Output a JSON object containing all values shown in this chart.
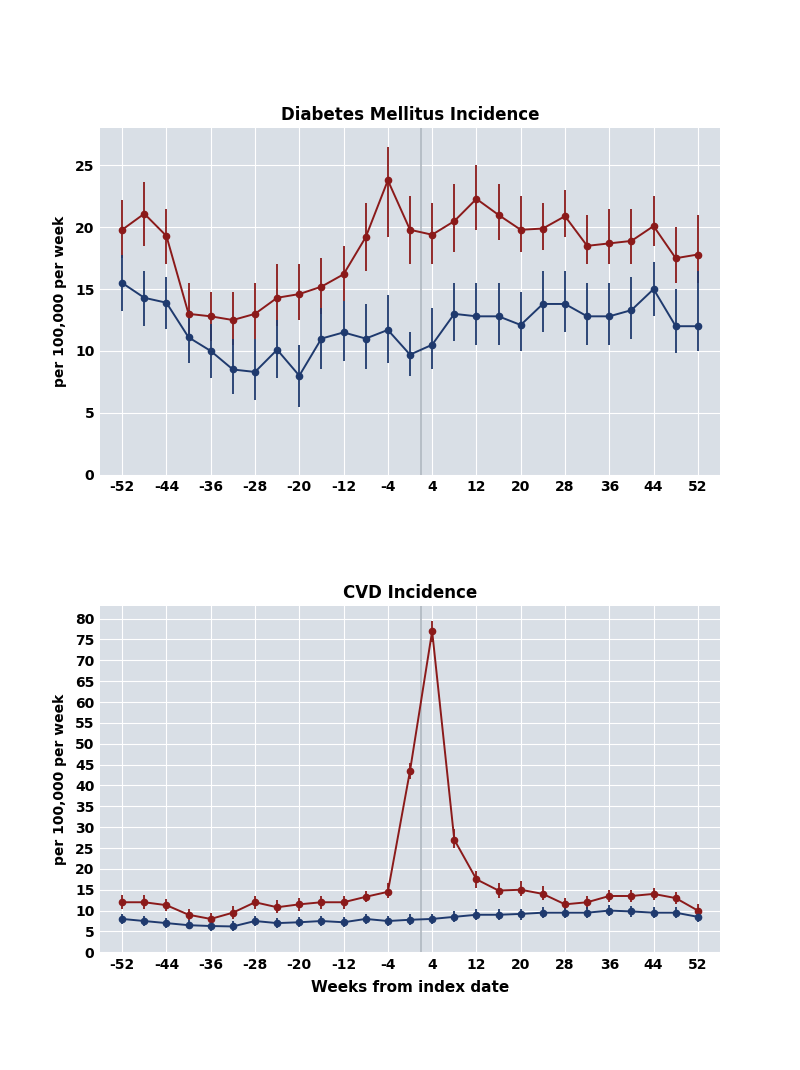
{
  "title1": "Diabetes Mellitus Incidence",
  "title2": "CVD Incidence",
  "xlabel": "Weeks from index date",
  "ylabel": "per 100,000 per week",
  "vline_x": 2,
  "bg_color": "#d9dfe6",
  "red_color": "#8B1A1A",
  "blue_color": "#1F3A6E",
  "grid_color": "#ffffff",
  "dm_weeks": [
    -52,
    -48,
    -44,
    -40,
    -36,
    -32,
    -28,
    -24,
    -20,
    -16,
    -12,
    -8,
    -4,
    0,
    4,
    8,
    12,
    16,
    20,
    24,
    28,
    32,
    36,
    40,
    44,
    48,
    52
  ],
  "dm_red_y": [
    19.8,
    21.1,
    19.3,
    13.0,
    12.8,
    12.5,
    13.0,
    14.3,
    14.6,
    15.2,
    16.2,
    19.2,
    23.8,
    19.8,
    19.4,
    20.5,
    22.3,
    21.0,
    19.8,
    19.9,
    20.9,
    18.5,
    18.7,
    18.9,
    20.1,
    17.5,
    17.8
  ],
  "dm_red_lo": [
    17.5,
    18.5,
    17.0,
    11.0,
    10.8,
    10.5,
    11.0,
    12.0,
    12.5,
    13.0,
    14.0,
    16.5,
    19.2,
    17.0,
    17.0,
    18.0,
    19.8,
    19.0,
    18.0,
    18.2,
    19.2,
    17.0,
    17.0,
    17.0,
    18.5,
    15.5,
    15.5
  ],
  "dm_red_hi": [
    22.2,
    23.7,
    21.5,
    15.5,
    14.8,
    14.8,
    15.5,
    17.0,
    17.0,
    17.5,
    18.5,
    22.0,
    26.5,
    22.5,
    22.0,
    23.5,
    25.0,
    23.5,
    22.5,
    22.0,
    23.0,
    21.0,
    21.5,
    21.5,
    22.5,
    20.0,
    21.0
  ],
  "dm_blue_y": [
    15.5,
    14.3,
    13.9,
    11.1,
    10.0,
    8.5,
    8.3,
    10.1,
    8.0,
    11.0,
    11.5,
    11.0,
    11.7,
    9.7,
    10.5,
    13.0,
    12.8,
    12.8,
    12.1,
    13.8,
    13.8,
    12.8,
    12.8,
    13.3,
    15.0,
    12.0,
    12.0
  ],
  "dm_blue_lo": [
    13.2,
    12.0,
    11.8,
    9.0,
    7.8,
    6.5,
    6.0,
    7.8,
    5.5,
    8.5,
    9.2,
    8.5,
    9.0,
    8.0,
    8.5,
    10.8,
    10.5,
    10.5,
    10.0,
    11.5,
    11.5,
    10.5,
    10.5,
    11.0,
    12.8,
    9.8,
    10.0
  ],
  "dm_blue_hi": [
    17.8,
    16.5,
    16.0,
    13.3,
    12.2,
    11.0,
    11.0,
    12.5,
    10.5,
    13.5,
    14.0,
    13.8,
    14.5,
    11.5,
    13.5,
    15.5,
    15.5,
    15.5,
    14.8,
    16.5,
    16.5,
    15.5,
    15.5,
    16.0,
    17.2,
    15.0,
    16.5
  ],
  "dm_ylim": [
    0,
    28
  ],
  "dm_yticks": [
    0,
    5,
    10,
    15,
    20,
    25
  ],
  "cvd_weeks": [
    -52,
    -48,
    -44,
    -40,
    -36,
    -32,
    -28,
    -24,
    -20,
    -16,
    -12,
    -8,
    -4,
    0,
    4,
    8,
    12,
    16,
    20,
    24,
    28,
    32,
    36,
    40,
    44,
    48,
    52
  ],
  "cvd_red_y": [
    12.0,
    12.0,
    11.3,
    9.0,
    8.0,
    9.5,
    12.0,
    10.8,
    11.5,
    12.0,
    12.0,
    13.3,
    14.5,
    43.5,
    77.0,
    27.0,
    17.5,
    14.8,
    15.0,
    14.0,
    11.5,
    12.0,
    13.5,
    13.5,
    14.0,
    13.0,
    10.0
  ],
  "cvd_red_lo": [
    10.5,
    10.5,
    10.0,
    7.8,
    6.8,
    8.0,
    10.5,
    9.5,
    10.0,
    10.5,
    10.5,
    12.0,
    13.0,
    41.5,
    74.5,
    25.0,
    15.5,
    13.0,
    13.5,
    12.5,
    10.0,
    10.5,
    12.0,
    12.0,
    12.5,
    11.5,
    8.5
  ],
  "cvd_red_hi": [
    13.8,
    13.8,
    12.8,
    10.5,
    9.5,
    11.0,
    13.5,
    12.5,
    13.0,
    13.5,
    13.5,
    14.8,
    16.5,
    45.5,
    79.5,
    29.5,
    19.5,
    16.5,
    17.0,
    15.8,
    13.0,
    13.5,
    15.0,
    15.0,
    15.5,
    14.5,
    11.5
  ],
  "cvd_blue_y": [
    8.0,
    7.5,
    7.0,
    6.5,
    6.3,
    6.2,
    7.5,
    7.0,
    7.2,
    7.5,
    7.2,
    8.0,
    7.5,
    7.8,
    8.0,
    8.5,
    9.0,
    9.0,
    9.2,
    9.5,
    9.5,
    9.5,
    10.0,
    9.8,
    9.5,
    9.5,
    8.5
  ],
  "cvd_blue_lo": [
    6.8,
    6.3,
    5.8,
    5.5,
    5.2,
    5.0,
    6.3,
    5.8,
    6.0,
    6.3,
    6.0,
    6.8,
    6.3,
    6.5,
    6.8,
    7.2,
    7.8,
    7.8,
    7.8,
    8.2,
    8.2,
    8.2,
    8.8,
    8.5,
    8.2,
    8.2,
    7.2
  ],
  "cvd_blue_hi": [
    9.3,
    8.8,
    8.3,
    7.8,
    7.5,
    7.5,
    8.8,
    8.3,
    8.5,
    8.8,
    8.5,
    9.3,
    8.8,
    9.2,
    9.3,
    9.8,
    10.3,
    10.3,
    10.5,
    10.8,
    10.8,
    10.8,
    11.3,
    11.2,
    10.8,
    10.8,
    9.8
  ],
  "cvd_ylim": [
    0,
    83
  ],
  "cvd_yticks": [
    0,
    5,
    10,
    15,
    20,
    25,
    30,
    35,
    40,
    45,
    50,
    55,
    60,
    65,
    70,
    75,
    80
  ],
  "xticks": [
    -52,
    -44,
    -36,
    -28,
    -20,
    -12,
    -4,
    4,
    12,
    20,
    28,
    36,
    44,
    52
  ],
  "xlim": [
    -56,
    56
  ]
}
